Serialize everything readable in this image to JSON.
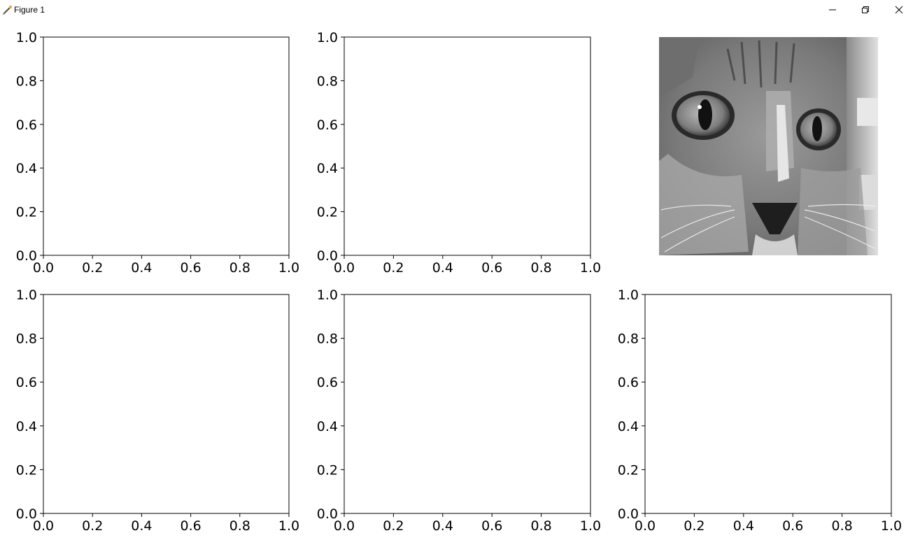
{
  "window": {
    "title": "Figure 1",
    "icons": {
      "app": "matplotlib-figure-icon",
      "minimize": "minimize-icon",
      "restore": "restore-icon",
      "close": "close-icon"
    }
  },
  "figure": {
    "image_subject": "grayscale cat face",
    "colors": {
      "axes_edge": "#000000",
      "background": "#ffffff",
      "text": "#000000"
    }
  },
  "chart_data": [
    {
      "type": "empty-axes",
      "position": "row 1, column 1",
      "xlim": [
        0,
        1
      ],
      "ylim": [
        0,
        1
      ],
      "xticks": [
        "0.0",
        "0.2",
        "0.4",
        "0.6",
        "0.8",
        "1.0"
      ],
      "yticks": [
        "0.0",
        "0.2",
        "0.4",
        "0.6",
        "0.8",
        "1.0"
      ],
      "grid": false
    },
    {
      "type": "empty-axes",
      "position": "row 1, column 2",
      "xlim": [
        0,
        1
      ],
      "ylim": [
        0,
        1
      ],
      "xticks": [
        "0.0",
        "0.2",
        "0.4",
        "0.6",
        "0.8",
        "1.0"
      ],
      "yticks": [
        "0.0",
        "0.2",
        "0.4",
        "0.6",
        "0.8",
        "1.0"
      ],
      "grid": false
    },
    {
      "type": "image",
      "position": "row 1, column 3",
      "axis": "off",
      "cmap": "gray"
    },
    {
      "type": "empty-axes",
      "position": "row 2, column 1",
      "xlim": [
        0,
        1
      ],
      "ylim": [
        0,
        1
      ],
      "xticks": [
        "0.0",
        "0.2",
        "0.4",
        "0.6",
        "0.8",
        "1.0"
      ],
      "yticks": [
        "0.0",
        "0.2",
        "0.4",
        "0.6",
        "0.8",
        "1.0"
      ],
      "grid": false
    },
    {
      "type": "empty-axes",
      "position": "row 2, column 2",
      "xlim": [
        0,
        1
      ],
      "ylim": [
        0,
        1
      ],
      "xticks": [
        "0.0",
        "0.2",
        "0.4",
        "0.6",
        "0.8",
        "1.0"
      ],
      "yticks": [
        "0.0",
        "0.2",
        "0.4",
        "0.6",
        "0.8",
        "1.0"
      ],
      "grid": false
    },
    {
      "type": "empty-axes",
      "position": "row 2, column 3",
      "xlim": [
        0,
        1
      ],
      "ylim": [
        0,
        1
      ],
      "xticks": [
        "0.0",
        "0.2",
        "0.4",
        "0.6",
        "0.8",
        "1.0"
      ],
      "yticks": [
        "0.0",
        "0.2",
        "0.4",
        "0.6",
        "0.8",
        "1.0"
      ],
      "grid": false
    }
  ]
}
